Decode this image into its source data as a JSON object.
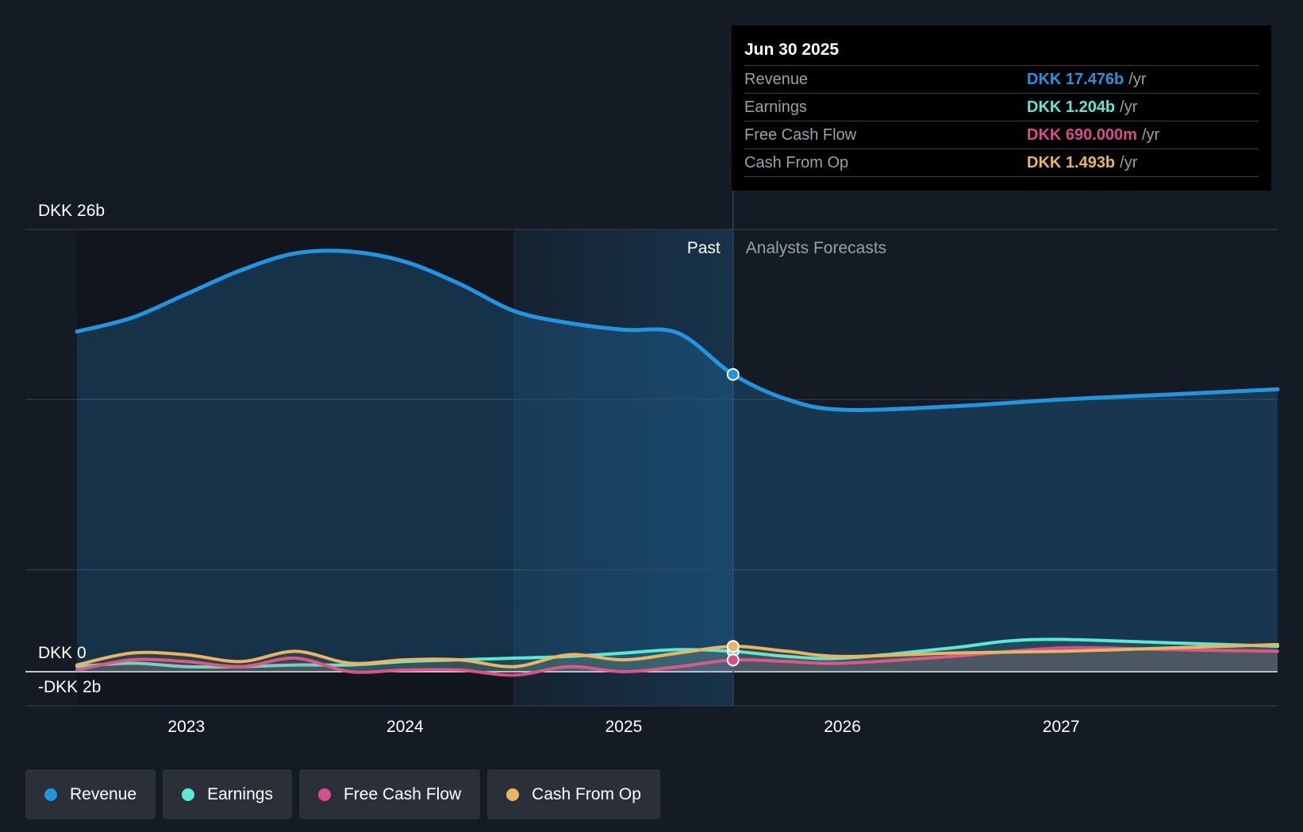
{
  "colors": {
    "revenue": "#2394df",
    "earnings": "#5ee8d4",
    "fcf": "#d94d8e",
    "cfo": "#e9b562",
    "grid": "#2d3440",
    "text": "#ffffff",
    "muted": "#9aa0a8"
  },
  "chart_data": {
    "type": "line",
    "title": "",
    "y_axis": {
      "top_label": "DKK 26b",
      "zero_label": "DKK 0",
      "bottom_label": "-DKK 2b",
      "ylim": [
        -2,
        26
      ],
      "gridlines": [
        0,
        6,
        16,
        26
      ]
    },
    "x_axis": {
      "ticks": [
        2023,
        2024,
        2025,
        2026,
        2027
      ],
      "xlim": [
        2022.5,
        2027.99
      ]
    },
    "past_label": "Past",
    "forecast_label": "Analysts Forecasts",
    "past_end": 2025.5,
    "highlight_start": 2024.5,
    "series": [
      {
        "name": "Revenue",
        "key": "revenue",
        "points": [
          [
            2022.5,
            20
          ],
          [
            2022.75,
            20.8
          ],
          [
            2023.0,
            22.2
          ],
          [
            2023.25,
            23.6
          ],
          [
            2023.5,
            24.6
          ],
          [
            2023.75,
            24.7
          ],
          [
            2024.0,
            24.1
          ],
          [
            2024.25,
            22.8
          ],
          [
            2024.5,
            21.2
          ],
          [
            2024.75,
            20.5
          ],
          [
            2025.0,
            20.1
          ],
          [
            2025.25,
            19.9
          ],
          [
            2025.5,
            17.48
          ],
          [
            2025.75,
            16.0
          ],
          [
            2026.0,
            15.4
          ],
          [
            2026.5,
            15.6
          ],
          [
            2027.0,
            16.0
          ],
          [
            2027.5,
            16.3
          ],
          [
            2027.99,
            16.6
          ]
        ]
      },
      {
        "name": "Earnings",
        "key": "earnings",
        "points": [
          [
            2022.5,
            0.3
          ],
          [
            2022.75,
            0.5
          ],
          [
            2023.0,
            0.3
          ],
          [
            2023.25,
            0.3
          ],
          [
            2023.5,
            0.4
          ],
          [
            2023.75,
            0.4
          ],
          [
            2024.0,
            0.6
          ],
          [
            2024.25,
            0.7
          ],
          [
            2024.5,
            0.8
          ],
          [
            2024.75,
            0.9
          ],
          [
            2025.0,
            1.1
          ],
          [
            2025.25,
            1.3
          ],
          [
            2025.5,
            1.2
          ],
          [
            2025.75,
            0.9
          ],
          [
            2026.0,
            0.8
          ],
          [
            2026.5,
            1.4
          ],
          [
            2026.75,
            1.8
          ],
          [
            2027.0,
            1.9
          ],
          [
            2027.5,
            1.7
          ],
          [
            2027.99,
            1.5
          ]
        ]
      },
      {
        "name": "Free Cash Flow",
        "key": "fcf",
        "points": [
          [
            2022.5,
            0.1
          ],
          [
            2022.75,
            0.7
          ],
          [
            2023.0,
            0.6
          ],
          [
            2023.25,
            0.3
          ],
          [
            2023.5,
            0.8
          ],
          [
            2023.75,
            0.0
          ],
          [
            2024.0,
            0.1
          ],
          [
            2024.25,
            0.1
          ],
          [
            2024.5,
            -0.2
          ],
          [
            2024.75,
            0.3
          ],
          [
            2025.0,
            0.0
          ],
          [
            2025.25,
            0.3
          ],
          [
            2025.5,
            0.69
          ],
          [
            2025.75,
            0.6
          ],
          [
            2026.0,
            0.5
          ],
          [
            2026.5,
            0.9
          ],
          [
            2027.0,
            1.4
          ],
          [
            2027.5,
            1.3
          ],
          [
            2027.99,
            1.2
          ]
        ]
      },
      {
        "name": "Cash From Op",
        "key": "cfo",
        "points": [
          [
            2022.5,
            0.4
          ],
          [
            2022.75,
            1.1
          ],
          [
            2023.0,
            1.0
          ],
          [
            2023.25,
            0.6
          ],
          [
            2023.5,
            1.2
          ],
          [
            2023.75,
            0.5
          ],
          [
            2024.0,
            0.7
          ],
          [
            2024.25,
            0.7
          ],
          [
            2024.5,
            0.3
          ],
          [
            2024.75,
            1.0
          ],
          [
            2025.0,
            0.7
          ],
          [
            2025.25,
            1.1
          ],
          [
            2025.5,
            1.49
          ],
          [
            2025.75,
            1.2
          ],
          [
            2026.0,
            0.9
          ],
          [
            2026.5,
            1.1
          ],
          [
            2027.0,
            1.2
          ],
          [
            2027.5,
            1.4
          ],
          [
            2027.99,
            1.6
          ]
        ]
      }
    ]
  },
  "tooltip": {
    "date": "Jun 30 2025",
    "rows": [
      {
        "label": "Revenue",
        "value": "DKK 17.476b",
        "unit": "/yr"
      },
      {
        "label": "Earnings",
        "value": "DKK 1.204b",
        "unit": "/yr"
      },
      {
        "label": "Free Cash Flow",
        "value": "DKK 690.000m",
        "unit": "/yr"
      },
      {
        "label": "Cash From Op",
        "value": "DKK 1.493b",
        "unit": "/yr"
      }
    ]
  },
  "legend": [
    {
      "label": "Revenue",
      "icon": "revenue-dot-icon"
    },
    {
      "label": "Earnings",
      "icon": "earnings-dot-icon"
    },
    {
      "label": "Free Cash Flow",
      "icon": "fcf-dot-icon"
    },
    {
      "label": "Cash From Op",
      "icon": "cfo-dot-icon"
    }
  ]
}
